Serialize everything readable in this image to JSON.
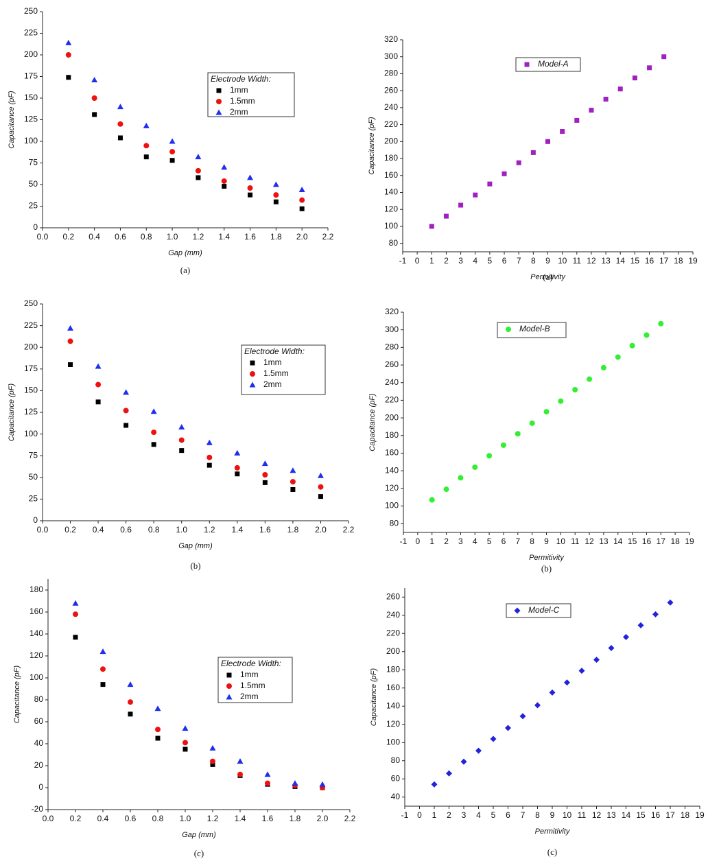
{
  "chart_data": [
    {
      "type": "scatter",
      "xlabel": "Gap (mm)",
      "ylabel": "Capacitance (pF)",
      "caption": "(a)",
      "legend_title": "Electrode Width:",
      "x": [
        0.2,
        0.4,
        0.6,
        0.8,
        1.0,
        1.2,
        1.4,
        1.6,
        1.8,
        2.0
      ],
      "xlim": [
        0,
        2.2
      ],
      "xticks": [
        {
          "value": 0,
          "label": "0.0"
        },
        0.2,
        0.4,
        0.6,
        0.8,
        {
          "value": 1,
          "label": "1.0"
        },
        1.2,
        1.4,
        1.6,
        1.8,
        {
          "value": 2,
          "label": "2.0"
        },
        2.2
      ],
      "ylim": [
        0,
        250
      ],
      "yticks": [
        0,
        25,
        50,
        75,
        100,
        125,
        150,
        175,
        200,
        225,
        250
      ],
      "series": [
        {
          "name": "1mm",
          "color": "#000000",
          "marker": "square",
          "values": [
            174,
            131,
            104,
            82,
            78,
            58,
            48,
            38,
            30,
            22
          ]
        },
        {
          "name": "1.5mm",
          "color": "#ee1111",
          "marker": "circle",
          "values": [
            200,
            150,
            120,
            95,
            88,
            66,
            54,
            46,
            38,
            32
          ]
        },
        {
          "name": "2mm",
          "color": "#1f2fee",
          "marker": "triangle",
          "values": [
            214,
            171,
            140,
            118,
            100,
            82,
            70,
            58,
            50,
            44
          ]
        }
      ]
    },
    {
      "type": "scatter",
      "xlabel": "Permitivity",
      "ylabel": "Capacitance (pF)",
      "caption": "(a)",
      "x": [
        1,
        2,
        3,
        4,
        5,
        6,
        7,
        8,
        9,
        10,
        11,
        12,
        13,
        14,
        15,
        16,
        17
      ],
      "xlim": [
        -1,
        19
      ],
      "xticks": [
        -1,
        0,
        1,
        2,
        3,
        4,
        5,
        6,
        7,
        8,
        9,
        10,
        11,
        12,
        13,
        14,
        15,
        16,
        17,
        18,
        19
      ],
      "ylim": [
        70,
        320
      ],
      "yticks": [
        80,
        100,
        120,
        140,
        160,
        180,
        200,
        220,
        240,
        260,
        280,
        300,
        320
      ],
      "series": [
        {
          "name": "Model-A",
          "color": "#a020c0",
          "marker": "square",
          "values": [
            100,
            112,
            125,
            137,
            150,
            162,
            175,
            187,
            200,
            212,
            225,
            237,
            250,
            262,
            275,
            287,
            300
          ]
        }
      ]
    },
    {
      "type": "scatter",
      "xlabel": "Gap (mm)",
      "ylabel": "Capacitance (pF)",
      "caption": "(b)",
      "legend_title": "Electrode Width:",
      "x": [
        0.2,
        0.4,
        0.6,
        0.8,
        1.0,
        1.2,
        1.4,
        1.6,
        1.8,
        2.0
      ],
      "xlim": [
        0,
        2.2
      ],
      "xticks": [
        {
          "value": 0,
          "label": "0.0"
        },
        0.2,
        0.4,
        0.6,
        0.8,
        {
          "value": 1,
          "label": "1.0"
        },
        1.2,
        1.4,
        1.6,
        1.8,
        {
          "value": 2,
          "label": "2.0"
        },
        2.2
      ],
      "ylim": [
        0,
        250
      ],
      "yticks": [
        0,
        25,
        50,
        75,
        100,
        125,
        150,
        175,
        200,
        225,
        250
      ],
      "series": [
        {
          "name": "1mm",
          "color": "#000000",
          "marker": "square",
          "values": [
            180,
            137,
            110,
            88,
            81,
            64,
            54,
            44,
            36,
            28
          ]
        },
        {
          "name": "1.5mm",
          "color": "#ee1111",
          "marker": "circle",
          "values": [
            207,
            157,
            127,
            102,
            93,
            73,
            61,
            53,
            45,
            39
          ]
        },
        {
          "name": "2mm",
          "color": "#1f2fee",
          "marker": "triangle",
          "values": [
            222,
            178,
            148,
            126,
            108,
            90,
            78,
            66,
            58,
            52
          ]
        }
      ]
    },
    {
      "type": "scatter",
      "xlabel": "Permitivity",
      "ylabel": "Capacitance (pF)",
      "caption": "(b)",
      "x": [
        1,
        2,
        3,
        4,
        5,
        6,
        7,
        8,
        9,
        10,
        11,
        12,
        13,
        14,
        15,
        16,
        17
      ],
      "xlim": [
        -1,
        19
      ],
      "xticks": [
        -1,
        0,
        1,
        2,
        3,
        4,
        5,
        6,
        7,
        8,
        9,
        10,
        11,
        12,
        13,
        14,
        15,
        16,
        17,
        18,
        19
      ],
      "ylim": [
        70,
        320
      ],
      "yticks": [
        80,
        100,
        120,
        140,
        160,
        180,
        200,
        220,
        240,
        260,
        280,
        300,
        320
      ],
      "series": [
        {
          "name": "Model-B",
          "color": "#33ee33",
          "marker": "circle",
          "values": [
            107,
            119,
            132,
            144,
            157,
            169,
            182,
            194,
            207,
            219,
            232,
            244,
            257,
            269,
            282,
            294,
            307
          ]
        }
      ]
    },
    {
      "type": "scatter",
      "xlabel": "Gap (mm)",
      "ylabel": "Capacitance (pF)",
      "caption": "(c)",
      "legend_title": "Electrode Width:",
      "x": [
        0.2,
        0.4,
        0.6,
        0.8,
        1.0,
        1.2,
        1.4,
        1.6,
        1.8,
        2.0
      ],
      "xlim": [
        0,
        2.2
      ],
      "xticks": [
        {
          "value": 0,
          "label": "0.0"
        },
        0.2,
        0.4,
        0.6,
        0.8,
        {
          "value": 1,
          "label": "1.0"
        },
        1.2,
        1.4,
        1.6,
        1.8,
        {
          "value": 2,
          "label": "2.0"
        },
        2.2
      ],
      "ylim": [
        -20,
        190
      ],
      "yticks": [
        -20,
        0,
        20,
        40,
        60,
        80,
        100,
        120,
        140,
        160,
        180
      ],
      "series": [
        {
          "name": "1mm",
          "color": "#000000",
          "marker": "square",
          "values": [
            137,
            94,
            67,
            45,
            35,
            21,
            11,
            3,
            1,
            0
          ]
        },
        {
          "name": "1.5mm",
          "color": "#ee1111",
          "marker": "circle",
          "values": [
            158,
            108,
            78,
            53,
            41,
            24,
            12,
            4,
            2,
            0
          ]
        },
        {
          "name": "2mm",
          "color": "#1f2fee",
          "marker": "triangle",
          "values": [
            168,
            124,
            94,
            72,
            54,
            36,
            24,
            12,
            4,
            3
          ]
        }
      ]
    },
    {
      "type": "scatter",
      "xlabel": "Permitivity",
      "ylabel": "Capacitance (pF)",
      "caption": "(c)",
      "x": [
        1,
        2,
        3,
        4,
        5,
        6,
        7,
        8,
        9,
        10,
        11,
        12,
        13,
        14,
        15,
        16,
        17
      ],
      "xlim": [
        -1,
        19
      ],
      "xticks": [
        -1,
        0,
        1,
        2,
        3,
        4,
        5,
        6,
        7,
        8,
        9,
        10,
        11,
        12,
        13,
        14,
        15,
        16,
        17,
        18,
        19
      ],
      "ylim": [
        30,
        270
      ],
      "yticks": [
        40,
        60,
        80,
        100,
        120,
        140,
        160,
        180,
        200,
        220,
        240,
        260
      ],
      "series": [
        {
          "name": "Model-C",
          "color": "#2222dd",
          "marker": "diamond",
          "values": [
            54,
            66,
            79,
            91,
            104,
            116,
            129,
            141,
            155,
            166,
            179,
            191,
            204,
            216,
            229,
            241,
            254
          ]
        }
      ]
    }
  ]
}
